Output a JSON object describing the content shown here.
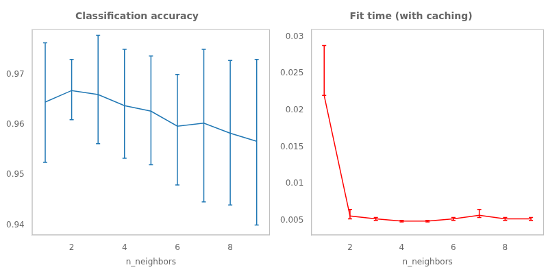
{
  "chart_data": [
    {
      "type": "line",
      "title": "Classification accuracy",
      "xlabel": "n_neighbors",
      "x": [
        1,
        2,
        3,
        4,
        5,
        6,
        7,
        8,
        9
      ],
      "values": [
        0.9645,
        0.9668,
        0.966,
        0.9638,
        0.9627,
        0.9597,
        0.9603,
        0.9583,
        0.9567
      ],
      "yerr_lower": [
        0.012,
        0.0058,
        0.0098,
        0.0105,
        0.0107,
        0.0117,
        0.0157,
        0.0143,
        0.0167
      ],
      "yerr_upper": [
        0.0118,
        0.0062,
        0.0118,
        0.0112,
        0.011,
        0.0103,
        0.0147,
        0.0145,
        0.0163
      ],
      "color": "#1f77b4",
      "xlim": [
        0.5,
        9.5
      ],
      "xticks": [
        2,
        4,
        6,
        8
      ],
      "ylim": [
        0.938,
        0.979
      ],
      "yticks": [
        0.94,
        0.95,
        0.96,
        0.97
      ],
      "grid": false
    },
    {
      "type": "line",
      "title": "Fit time (with caching)",
      "xlabel": "n_neighbors",
      "x": [
        1,
        2,
        3,
        4,
        5,
        6,
        7,
        8,
        9
      ],
      "values": [
        0.022,
        0.0056,
        0.0052,
        0.0049,
        0.0049,
        0.0052,
        0.0057,
        0.0052,
        0.0052
      ],
      "yerr_lower": [
        0.0,
        0.0004,
        0.0002,
        0.0001,
        0.0001,
        0.0002,
        0.0003,
        0.0002,
        0.0002
      ],
      "yerr_upper": [
        0.0068,
        0.0009,
        0.0002,
        0.0001,
        0.0001,
        0.0002,
        0.0008,
        0.0002,
        0.0002
      ],
      "color": "red",
      "xlim": [
        0.5,
        9.5
      ],
      "xticks": [
        2,
        4,
        6,
        8
      ],
      "ylim": [
        0.003,
        0.031
      ],
      "yticks": [
        0.005,
        0.01,
        0.015,
        0.02,
        0.025,
        0.03
      ],
      "grid": false
    }
  ]
}
